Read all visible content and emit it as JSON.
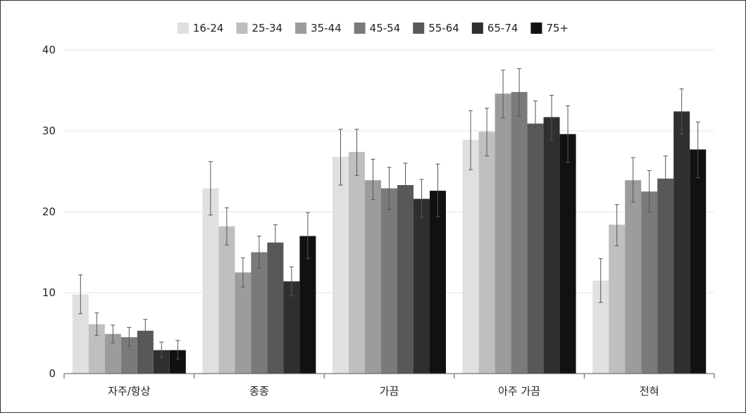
{
  "chart_data": {
    "type": "bar",
    "title": "",
    "xlabel": "",
    "ylabel": "",
    "ylim": [
      0,
      40
    ],
    "yticks": [
      0,
      10,
      20,
      30,
      40
    ],
    "grid": true,
    "legend_position": "top",
    "error_bars": true,
    "categories": [
      "자주/항상",
      "종종",
      "가끔",
      "아주 가끔",
      "전혀"
    ],
    "series": [
      {
        "name": "16-24",
        "color": "#e0e0e0",
        "values": [
          9.8,
          22.9,
          26.8,
          28.9,
          11.5
        ],
        "err_low": [
          7.4,
          19.6,
          23.3,
          25.2,
          8.8
        ],
        "err_high": [
          12.2,
          26.2,
          30.2,
          32.5,
          14.2
        ]
      },
      {
        "name": "25-34",
        "color": "#bfbfbf",
        "values": [
          6.1,
          18.2,
          27.4,
          29.9,
          18.4
        ],
        "err_low": [
          4.7,
          15.9,
          24.5,
          26.9,
          15.8
        ],
        "err_high": [
          7.5,
          20.5,
          30.2,
          32.8,
          20.9
        ]
      },
      {
        "name": "35-44",
        "color": "#9c9c9c",
        "values": [
          4.9,
          12.5,
          23.9,
          34.6,
          23.9
        ],
        "err_low": [
          3.8,
          10.7,
          21.5,
          31.6,
          21.2
        ],
        "err_high": [
          6.0,
          14.3,
          26.5,
          37.5,
          26.7
        ]
      },
      {
        "name": "45-54",
        "color": "#7a7a7a",
        "values": [
          4.5,
          15.0,
          22.9,
          34.8,
          22.5
        ],
        "err_low": [
          3.4,
          13.0,
          20.3,
          31.8,
          20.0
        ],
        "err_high": [
          5.7,
          17.0,
          25.5,
          37.7,
          25.1
        ]
      },
      {
        "name": "55-64",
        "color": "#585858",
        "values": [
          5.3,
          16.2,
          23.3,
          30.9,
          24.1
        ],
        "err_low": [
          4.0,
          14.0,
          20.7,
          28.1,
          21.4
        ],
        "err_high": [
          6.7,
          18.4,
          26.0,
          33.7,
          26.9
        ]
      },
      {
        "name": "65-74",
        "color": "#2f2f2f",
        "values": [
          2.9,
          11.4,
          21.6,
          31.7,
          32.4
        ],
        "err_low": [
          2.0,
          9.6,
          19.3,
          28.9,
          29.6
        ],
        "err_high": [
          3.9,
          13.2,
          24.0,
          34.4,
          35.2
        ]
      },
      {
        "name": "75+",
        "color": "#111111",
        "values": [
          2.9,
          17.0,
          22.6,
          29.6,
          27.7
        ],
        "err_low": [
          1.8,
          14.2,
          19.4,
          26.1,
          24.2
        ],
        "err_high": [
          4.1,
          19.9,
          25.9,
          33.1,
          31.1
        ]
      }
    ]
  }
}
